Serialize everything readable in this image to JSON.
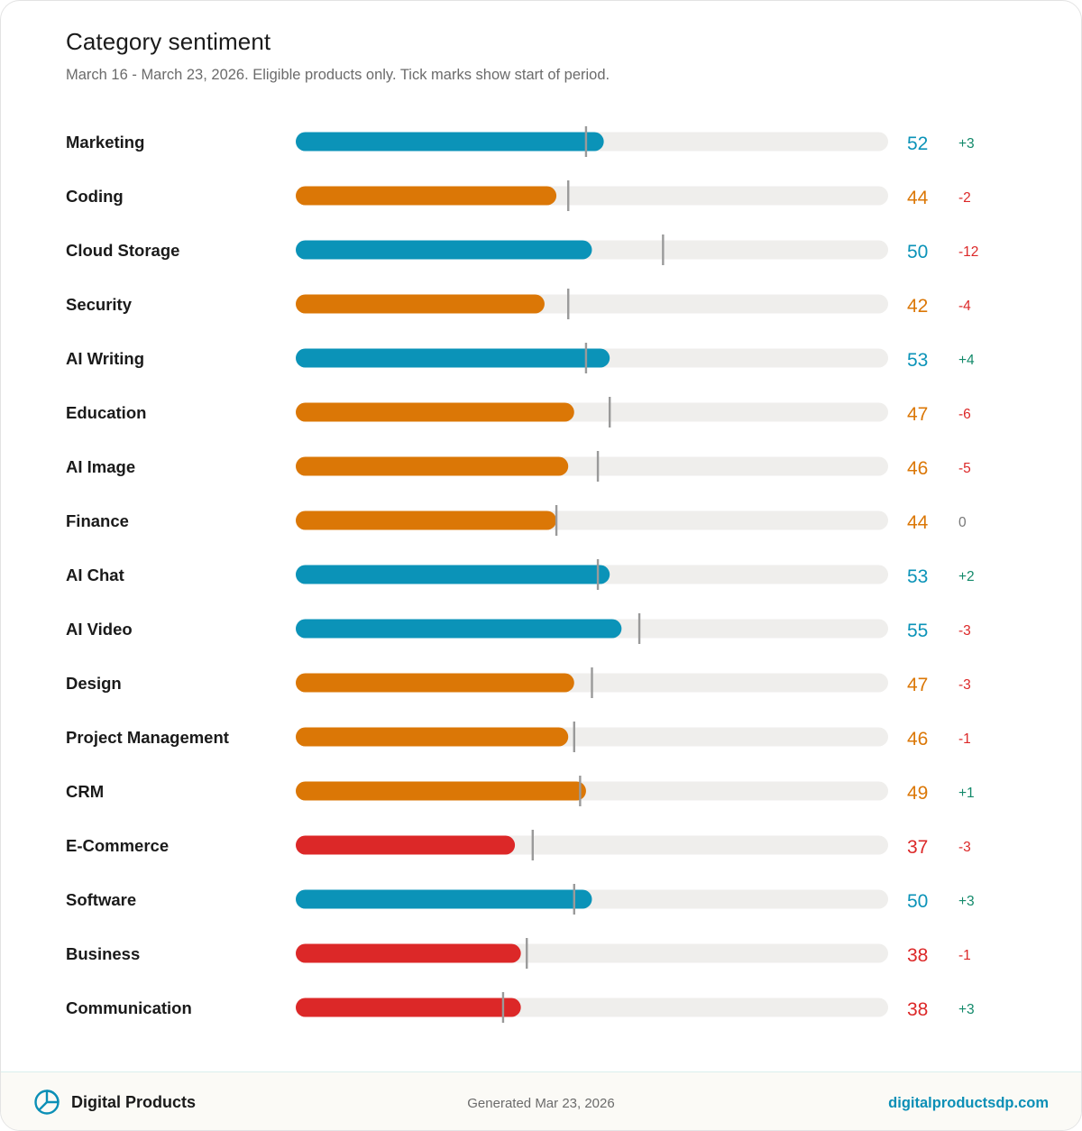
{
  "header": {
    "title": "Category sentiment",
    "subtitle": "March 16 - March 23, 2026. Eligible products only. Tick marks show start of period."
  },
  "colors": {
    "positive": "#0b93b8",
    "neutral": "#db7706",
    "negative": "#dc2828",
    "track": "#efeeec",
    "tick": "#9a9a9a",
    "delta_up": "#12896a",
    "delta_down": "#dc2828",
    "delta_zero": "#777777"
  },
  "chart_data": {
    "type": "bar",
    "orientation": "horizontal",
    "title": "Category sentiment",
    "xlim": [
      0,
      100
    ],
    "categories": [
      "Marketing",
      "Coding",
      "Cloud Storage",
      "Security",
      "AI Writing",
      "Education",
      "AI Image",
      "Finance",
      "AI Chat",
      "AI Video",
      "Design",
      "Project Management",
      "CRM",
      "E-Commerce",
      "Software",
      "Business",
      "Communication"
    ],
    "values": [
      52,
      44,
      50,
      42,
      53,
      47,
      46,
      44,
      53,
      55,
      47,
      46,
      49,
      37,
      50,
      38,
      38
    ],
    "start_values": [
      49,
      46,
      62,
      46,
      49,
      53,
      51,
      44,
      51,
      58,
      50,
      47,
      48,
      40,
      47,
      39,
      35
    ],
    "delta_labels": [
      "+3",
      "-2",
      "-12",
      "-4",
      "+4",
      "-6",
      "-5",
      "0",
      "+2",
      "-3",
      "-3",
      "-1",
      "+1",
      "-3",
      "+3",
      "-1",
      "+3"
    ],
    "value_colors": [
      "positive",
      "neutral",
      "positive",
      "neutral",
      "positive",
      "neutral",
      "neutral",
      "neutral",
      "positive",
      "positive",
      "neutral",
      "neutral",
      "neutral",
      "negative",
      "positive",
      "negative",
      "negative"
    ]
  },
  "footer": {
    "brand": "Digital Products",
    "brand_icon": "pie-chart-icon",
    "generated": "Generated Mar 23, 2026",
    "site": "digitalproductsdp.com"
  }
}
